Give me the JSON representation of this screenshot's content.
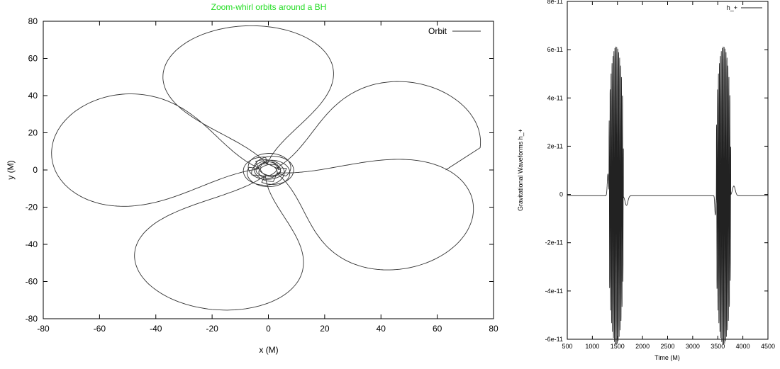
{
  "chart_data": [
    {
      "type": "line",
      "title": "Zoom-whirl orbits around a BH",
      "title_color": "#22dd22",
      "xlabel": "x (M)",
      "ylabel": "y (M)",
      "xlim": [
        -80,
        80
      ],
      "ylim": [
        -80,
        80
      ],
      "xticks": [
        -80,
        -60,
        -40,
        -20,
        0,
        20,
        40,
        60,
        80
      ],
      "yticks": [
        -80,
        -60,
        -40,
        -20,
        0,
        20,
        40,
        60,
        80
      ],
      "grid": false,
      "legend_position": "top-right",
      "series": [
        {
          "name": "Orbit",
          "description": "precessing zoom-whirl orbit: 5 apoastron lobes (r_apo ≈ 78 M) with a whirl of near-circular passes at r ≈ 3–7 M around the origin",
          "apoapsis_radius": 78,
          "whirl_radius": 3.5,
          "lobe_directions_deg": [
            98,
            168,
            250,
            332,
            20
          ],
          "end_point": [
            63,
            0
          ]
        }
      ]
    },
    {
      "type": "line",
      "title": "",
      "xlabel": "Time (M)",
      "ylabel": "Gravitational Waveforms h_+",
      "xlim": [
        500,
        4500
      ],
      "ylim": [
        -6e-11,
        8e-11
      ],
      "xticks": [
        500,
        1000,
        1500,
        2000,
        2500,
        3000,
        3500,
        4000,
        4500
      ],
      "yticks": [
        "-6e-11",
        "-4e-11",
        "-2e-11",
        "0",
        "2e-11",
        "4e-11",
        "6e-11",
        "8e-11"
      ],
      "ytick_values": [
        -6e-11,
        -4e-11,
        -2e-11,
        0,
        2e-11,
        4e-11,
        6e-11,
        8e-11
      ],
      "grid": false,
      "legend_position": "top-right",
      "series": [
        {
          "name": "h_+",
          "bursts": [
            {
              "t_start": 1330,
              "t_end": 1620,
              "amplitude": 6.2e-11,
              "precursor_peak": [
                1310,
                9e-12
              ],
              "postcursor_dip": [
                1680,
                -4e-12
              ]
            },
            {
              "t_start": 3470,
              "t_end": 3760,
              "amplitude": 6.2e-11,
              "precursor_dip": [
                3450,
                -8e-12
              ],
              "postcursor_peak": [
                3820,
                4e-12
              ]
            }
          ],
          "baseline": -5e-13
        }
      ]
    }
  ]
}
